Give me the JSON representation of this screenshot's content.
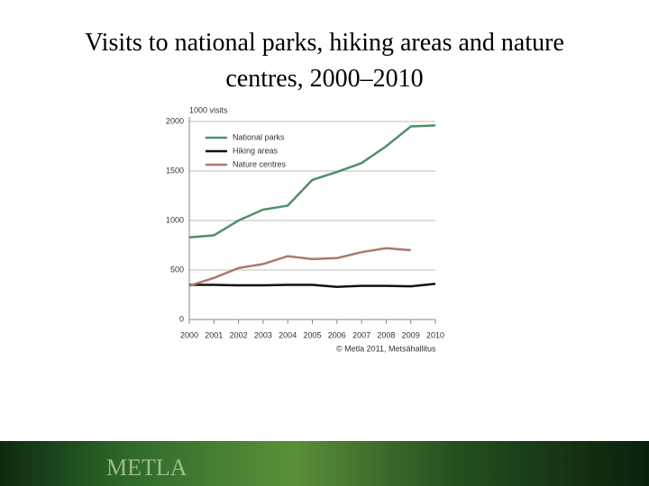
{
  "chart_data": {
    "type": "line",
    "title": "Visits to national parks, hiking areas and nature centres, 2000–2010",
    "y_label": "1000 visits",
    "source": "© Metla 2011, Metsähallitus",
    "x": [
      2000,
      2001,
      2002,
      2003,
      2004,
      2005,
      2006,
      2007,
      2008,
      2009,
      2010
    ],
    "xlim": [
      2000,
      2010
    ],
    "xticks": [
      2000,
      2001,
      2002,
      2003,
      2004,
      2005,
      2006,
      2007,
      2008,
      2009,
      2010
    ],
    "ylim": [
      0,
      2000
    ],
    "yticks": [
      0,
      500,
      1000,
      1500,
      2000
    ],
    "grid": true,
    "legend": "top-left",
    "series": [
      {
        "name": "National parks",
        "color": "#4f8f6a",
        "values": [
          830,
          850,
          1000,
          1110,
          1150,
          1410,
          1490,
          1580,
          1750,
          1950,
          1960
        ]
      },
      {
        "name": "Hiking areas",
        "color": "#111111",
        "values": [
          350,
          350,
          345,
          345,
          350,
          350,
          330,
          340,
          340,
          335,
          360
        ]
      },
      {
        "name": "Nature centres",
        "color": "#a87a6c",
        "values": [
          340,
          420,
          520,
          560,
          640,
          610,
          620,
          680,
          720,
          700,
          null
        ]
      }
    ]
  },
  "footer": {
    "logo": "METLA"
  }
}
